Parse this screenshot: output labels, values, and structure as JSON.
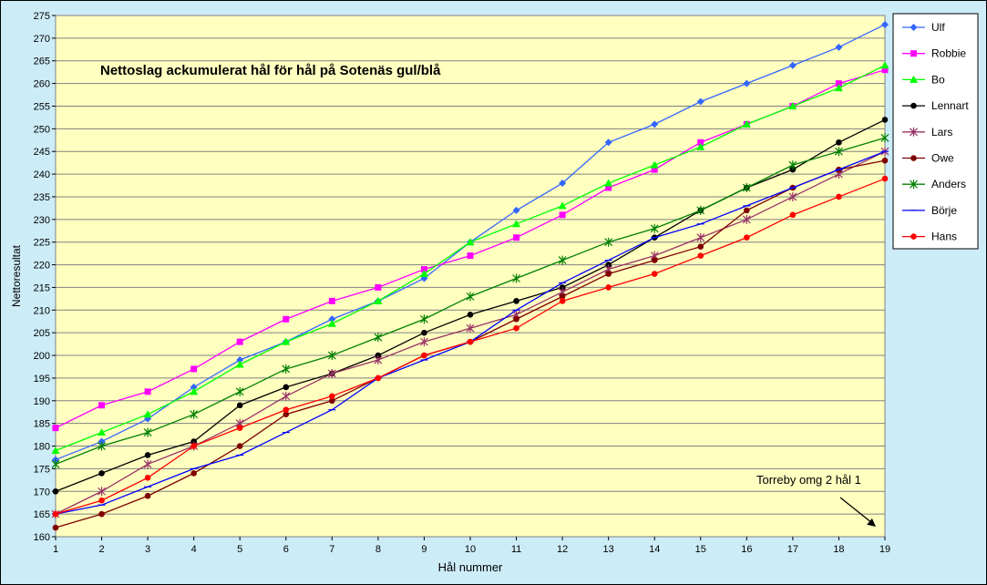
{
  "chart_data": {
    "type": "line",
    "title": "Nettoslag ackumulerat hål för hål på Sotenäs gul/blå",
    "xlabel": "Hål nummer",
    "ylabel": "Nettoresultat",
    "x": [
      1,
      2,
      3,
      4,
      5,
      6,
      7,
      8,
      9,
      10,
      11,
      12,
      13,
      14,
      15,
      16,
      17,
      18,
      19
    ],
    "xlim": [
      1,
      19
    ],
    "ylim": [
      160,
      275
    ],
    "y_ticks": [
      160,
      165,
      170,
      175,
      180,
      185,
      190,
      195,
      200,
      205,
      210,
      215,
      220,
      225,
      230,
      235,
      240,
      245,
      250,
      255,
      260,
      265,
      270,
      275
    ],
    "grid": "horizontal",
    "legend_position": "right",
    "plot_background": "#ffffc0",
    "page_background": "#ccecf8",
    "annotation": {
      "text": "Torreby omg 2 hål 1",
      "arrow_to": [
        19,
        161
      ]
    },
    "series": [
      {
        "name": "Ulf",
        "color": "#3366ff",
        "marker": "diamond",
        "values": [
          177,
          181,
          186,
          193,
          199,
          203,
          208,
          212,
          217,
          225,
          232,
          238,
          247,
          251,
          256,
          260,
          264,
          268,
          273
        ]
      },
      {
        "name": "Robbie",
        "color": "#ff00ff",
        "marker": "square",
        "values": [
          184,
          189,
          192,
          197,
          203,
          208,
          212,
          215,
          219,
          222,
          226,
          231,
          237,
          241,
          247,
          251,
          255,
          260,
          263
        ]
      },
      {
        "name": "Bo",
        "color": "#00ff00",
        "marker": "triangle",
        "values": [
          179,
          183,
          187,
          192,
          198,
          203,
          207,
          212,
          218,
          225,
          229,
          233,
          238,
          242,
          246,
          251,
          255,
          259,
          264
        ]
      },
      {
        "name": "Lennart",
        "color": "#000000",
        "marker": "circle",
        "values": [
          170,
          174,
          178,
          181,
          189,
          193,
          196,
          200,
          205,
          209,
          212,
          215,
          220,
          226,
          232,
          237,
          241,
          247,
          252
        ]
      },
      {
        "name": "Lars",
        "color": "#993366",
        "marker": "star",
        "values": [
          165,
          170,
          176,
          180,
          185,
          191,
          196,
          199,
          203,
          206,
          209,
          214,
          219,
          222,
          226,
          230,
          235,
          240,
          245
        ]
      },
      {
        "name": "Owe",
        "color": "#800000",
        "marker": "circle",
        "values": [
          162,
          165,
          169,
          174,
          180,
          187,
          190,
          195,
          200,
          203,
          208,
          213,
          218,
          221,
          224,
          232,
          237,
          241,
          243
        ]
      },
      {
        "name": "Anders",
        "color": "#008000",
        "marker": "star",
        "values": [
          176,
          180,
          183,
          187,
          192,
          197,
          200,
          204,
          208,
          213,
          217,
          221,
          225,
          228,
          232,
          237,
          242,
          245,
          248
        ]
      },
      {
        "name": "Börje",
        "color": "#0000ff",
        "marker": "dash",
        "values": [
          165,
          167,
          171,
          175,
          178,
          183,
          188,
          195,
          199,
          203,
          210,
          216,
          221,
          226,
          229,
          233,
          237,
          241,
          245
        ]
      },
      {
        "name": "Hans",
        "color": "#ff0000",
        "marker": "circle",
        "values": [
          165,
          168,
          173,
          180,
          184,
          188,
          191,
          195,
          200,
          203,
          206,
          212,
          215,
          218,
          222,
          226,
          231,
          235,
          239
        ]
      }
    ]
  }
}
